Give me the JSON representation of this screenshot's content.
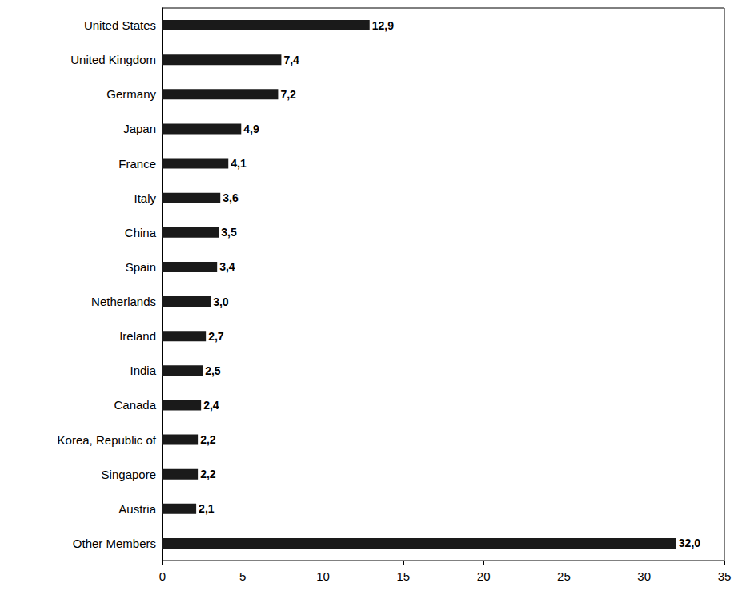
{
  "chart_data": {
    "type": "bar",
    "orientation": "horizontal",
    "categories": [
      "United States",
      "United Kingdom",
      "Germany",
      "Japan",
      "France",
      "Italy",
      "China",
      "Spain",
      "Netherlands",
      "Ireland",
      "India",
      "Canada",
      "Korea, Republic of",
      "Singapore",
      "Austria",
      "Other Members"
    ],
    "values": [
      12.9,
      7.4,
      7.2,
      4.9,
      4.1,
      3.6,
      3.5,
      3.4,
      3.0,
      2.7,
      2.5,
      2.4,
      2.2,
      2.2,
      2.1,
      32.0
    ],
    "value_labels": [
      "12,9",
      "7,4",
      "7,2",
      "4,9",
      "4,1",
      "3,6",
      "3,5",
      "3,4",
      "3,0",
      "2,7",
      "2,5",
      "2,4",
      "2,2",
      "2,2",
      "2,1",
      "32,0"
    ],
    "color": "#1a1a1a",
    "xlim": [
      0,
      35
    ],
    "xticks": [
      0,
      5,
      10,
      15,
      20,
      25,
      30,
      35
    ],
    "grid": false,
    "data_labels": true
  }
}
